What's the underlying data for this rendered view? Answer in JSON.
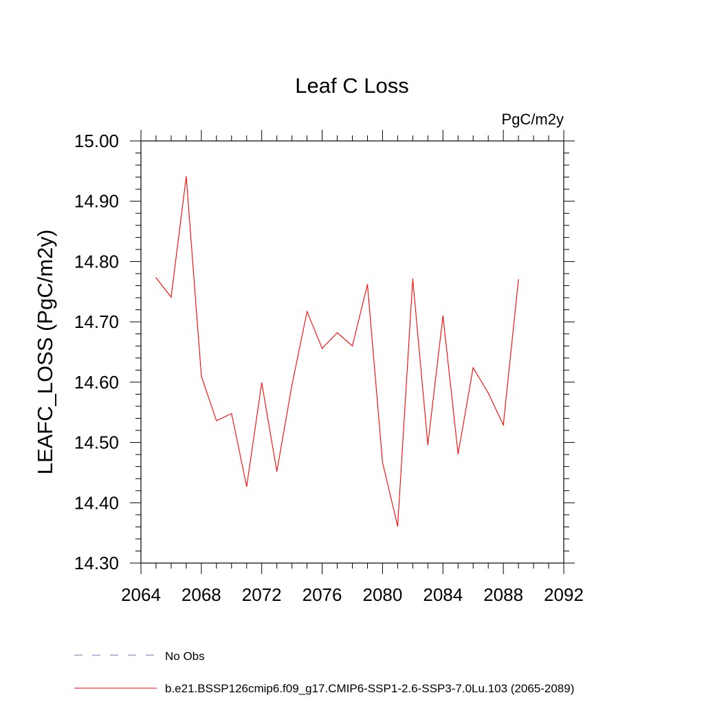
{
  "chart_data": {
    "type": "line",
    "title": "Leaf C Loss",
    "units_label": "PgC/m2y",
    "ylabel": "LEAFC_LOSS  (PgC/m2y)",
    "xlabel": "",
    "xlim": [
      2064,
      2092
    ],
    "ylim": [
      14.3,
      15.0
    ],
    "xticks": [
      2064,
      2068,
      2072,
      2076,
      2080,
      2084,
      2088,
      2092
    ],
    "yticks": [
      "14.30",
      "14.40",
      "14.50",
      "14.60",
      "14.70",
      "14.80",
      "14.90",
      "15.00"
    ],
    "grid": false,
    "series": [
      {
        "name": "b.e21.BSSP126cmip6.f09_g17.CMIP6-SSP1-2.6-SSP3-7.0Lu.103 (2065-2089)",
        "color": "#ff0000",
        "x": [
          2065,
          2066,
          2067,
          2068,
          2069,
          2070,
          2071,
          2072,
          2073,
          2074,
          2075,
          2076,
          2077,
          2078,
          2079,
          2080,
          2081,
          2082,
          2083,
          2084,
          2085,
          2086,
          2087,
          2088,
          2089
        ],
        "values": [
          14.773,
          14.741,
          14.941,
          14.61,
          14.536,
          14.548,
          14.427,
          14.599,
          14.452,
          14.595,
          14.717,
          14.656,
          14.682,
          14.66,
          14.762,
          14.467,
          14.361,
          14.771,
          14.496,
          14.71,
          14.481,
          14.624,
          14.582,
          14.529,
          14.77
        ]
      }
    ],
    "legend": [
      {
        "label": "No Obs",
        "color": "#7b6cc4",
        "style": "dashed"
      },
      {
        "label": "b.e21.BSSP126cmip6.f09_g17.CMIP6-SSP1-2.6-SSP3-7.0Lu.103 (2065-2089)",
        "color": "#ff0000",
        "style": "solid"
      }
    ]
  }
}
